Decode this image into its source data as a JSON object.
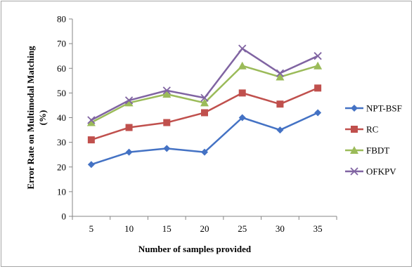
{
  "chart_data": {
    "type": "line",
    "title": "",
    "xlabel": "Number of samples provided",
    "ylabel": "Error Rate on Multimodal Matching (%)",
    "ylabel_lines": [
      "Error Rate on Multimodal Matching",
      "(%)"
    ],
    "categories": [
      "5",
      "10",
      "15",
      "20",
      "25",
      "30",
      "35"
    ],
    "ylim": [
      0,
      80
    ],
    "yticks": [
      0,
      10,
      20,
      30,
      40,
      50,
      60,
      70,
      80
    ],
    "grid": false,
    "legend_position": "right",
    "series": [
      {
        "name": "NPT-BSF",
        "color": "#4472c4",
        "marker": "diamond",
        "values": [
          21,
          26,
          27.5,
          26,
          40,
          35,
          42
        ]
      },
      {
        "name": "RC",
        "color": "#c0504d",
        "marker": "square",
        "values": [
          31,
          36,
          38,
          42,
          50,
          45.5,
          52
        ]
      },
      {
        "name": "FBDT",
        "color": "#9bbb59",
        "marker": "triangle",
        "values": [
          38,
          46,
          49.5,
          46,
          61,
          56.5,
          61
        ]
      },
      {
        "name": "OFKPV",
        "color": "#8064a2",
        "marker": "x",
        "values": [
          39,
          47,
          51,
          48,
          68,
          58,
          65
        ]
      }
    ]
  }
}
